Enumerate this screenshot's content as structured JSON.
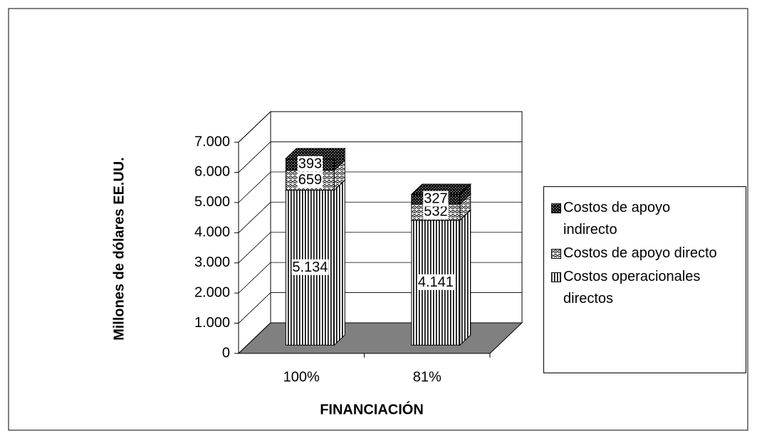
{
  "chart_data": {
    "type": "bar3d_stacked",
    "categories": [
      "100%",
      "81%"
    ],
    "series": [
      {
        "name": "Costos operacionales directos",
        "color": "#000000",
        "values": [
          5134,
          4141
        ],
        "value_labels": [
          "5.134",
          "4.141"
        ]
      },
      {
        "name": "Costos de apoyo directo",
        "color": "#000000",
        "values": [
          659,
          532
        ],
        "value_labels": [
          "659",
          "532"
        ]
      },
      {
        "name": "Costos de apoyo indirecto",
        "color": "#000000",
        "values": [
          393,
          327
        ],
        "value_labels": [
          "393",
          "327"
        ]
      }
    ],
    "ylim": [
      0,
      7000
    ],
    "yticks": [
      0,
      {
        "value": 1000,
        "label": "1.000"
      },
      {
        "value": 2000,
        "label": "2.000"
      },
      {
        "value": 3000,
        "label": "3.000"
      },
      {
        "value": 4000,
        "label": "4.000"
      },
      {
        "value": 5000,
        "label": "5.000"
      },
      {
        "value": 6000,
        "label": "6.000"
      },
      {
        "value": 7000,
        "label": "7.000"
      }
    ],
    "ylabel": "Millones de dólares EE.UU.",
    "xlabel": "FINANCIACIÓN",
    "grid": true,
    "legend": "right"
  }
}
